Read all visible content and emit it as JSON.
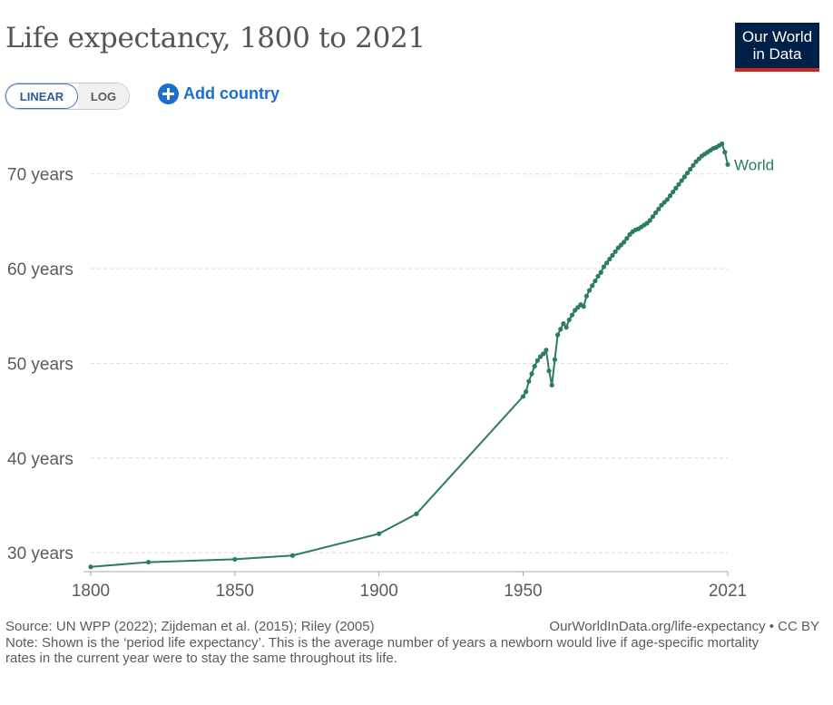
{
  "header": {
    "title": "Life expectancy, 1800 to 2021",
    "logo_line1": "Our World",
    "logo_line2": "in Data"
  },
  "controls": {
    "linear_label": "LINEAR",
    "log_label": "LOG",
    "add_country_label": "Add country"
  },
  "footer": {
    "source": "Source: UN WPP (2022); Zijdeman et al. (2015); Riley (2005)",
    "url": "OurWorldInData.org/life-expectancy • CC BY",
    "note": "Note: Shown is the ‘period life expectancy’. This is the average number of years a newborn would live if age-specific mortality rates in the current year were to stay the same throughout its life."
  },
  "colors": {
    "series": "#2c7c5f",
    "logo_bg": "#002147",
    "logo_bar": "#ce261e",
    "accent": "#1a6fd1"
  },
  "chart_data": {
    "type": "line",
    "title": "Life expectancy, 1800 to 2021",
    "xlabel": "",
    "ylabel": "",
    "xlim": [
      1800,
      2021
    ],
    "ylim": [
      28,
      74
    ],
    "x_ticks": [
      1800,
      1850,
      1900,
      1950,
      2021
    ],
    "y_ticks": [
      30,
      40,
      50,
      60,
      70
    ],
    "y_tick_labels": [
      "30 years",
      "40 years",
      "50 years",
      "60 years",
      "70 years"
    ],
    "grid": "horizontal dashed",
    "series": [
      {
        "name": "World",
        "x": [
          1800,
          1820,
          1850,
          1870,
          1900,
          1913,
          1950,
          1951,
          1952,
          1953,
          1954,
          1955,
          1956,
          1957,
          1958,
          1959,
          1960,
          1961,
          1962,
          1963,
          1964,
          1965,
          1966,
          1967,
          1968,
          1969,
          1970,
          1971,
          1972,
          1973,
          1974,
          1975,
          1976,
          1977,
          1978,
          1979,
          1980,
          1981,
          1982,
          1983,
          1984,
          1985,
          1986,
          1987,
          1988,
          1989,
          1990,
          1991,
          1992,
          1993,
          1994,
          1995,
          1996,
          1997,
          1998,
          1999,
          2000,
          2001,
          2002,
          2003,
          2004,
          2005,
          2006,
          2007,
          2008,
          2009,
          2010,
          2011,
          2012,
          2013,
          2014,
          2015,
          2016,
          2017,
          2018,
          2019,
          2020,
          2021
        ],
        "values": [
          28.5,
          29.0,
          29.3,
          29.7,
          32.0,
          34.1,
          46.5,
          47.0,
          48.1,
          48.9,
          49.7,
          50.3,
          50.7,
          51.0,
          51.4,
          49.2,
          47.7,
          50.4,
          53.0,
          53.6,
          54.2,
          53.8,
          54.6,
          55.1,
          55.6,
          55.9,
          56.2,
          56.0,
          57.1,
          57.7,
          58.2,
          58.7,
          59.2,
          59.6,
          60.2,
          60.6,
          61.0,
          61.4,
          61.8,
          62.2,
          62.5,
          62.8,
          63.2,
          63.6,
          63.9,
          64.1,
          64.2,
          64.4,
          64.6,
          64.8,
          65.1,
          65.5,
          65.9,
          66.3,
          66.7,
          67.0,
          67.3,
          67.7,
          68.1,
          68.5,
          68.9,
          69.3,
          69.7,
          70.1,
          70.5,
          70.9,
          71.3,
          71.6,
          71.9,
          72.1,
          72.3,
          72.5,
          72.7,
          72.8,
          73.0,
          73.2,
          72.3,
          71.0
        ]
      }
    ]
  }
}
